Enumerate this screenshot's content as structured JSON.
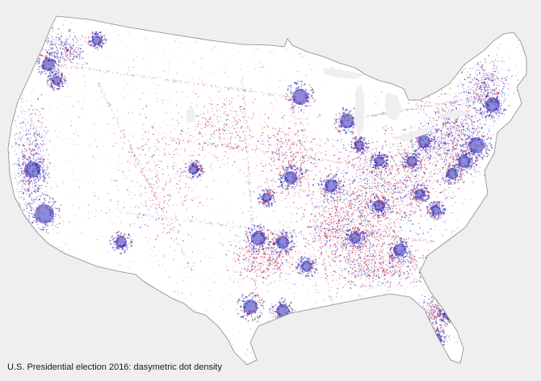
{
  "caption": "U.S. Presidential election 2016: dasymetric dot density",
  "map": {
    "subject": "United States (contiguous) 2016 presidential vote, dot density",
    "land_color": "#ffffff",
    "border_color": "#888888",
    "background_color": "#efefef",
    "dot_colors": {
      "democratic": "#2b2bb8",
      "republican": "#d8283a"
    }
  }
}
